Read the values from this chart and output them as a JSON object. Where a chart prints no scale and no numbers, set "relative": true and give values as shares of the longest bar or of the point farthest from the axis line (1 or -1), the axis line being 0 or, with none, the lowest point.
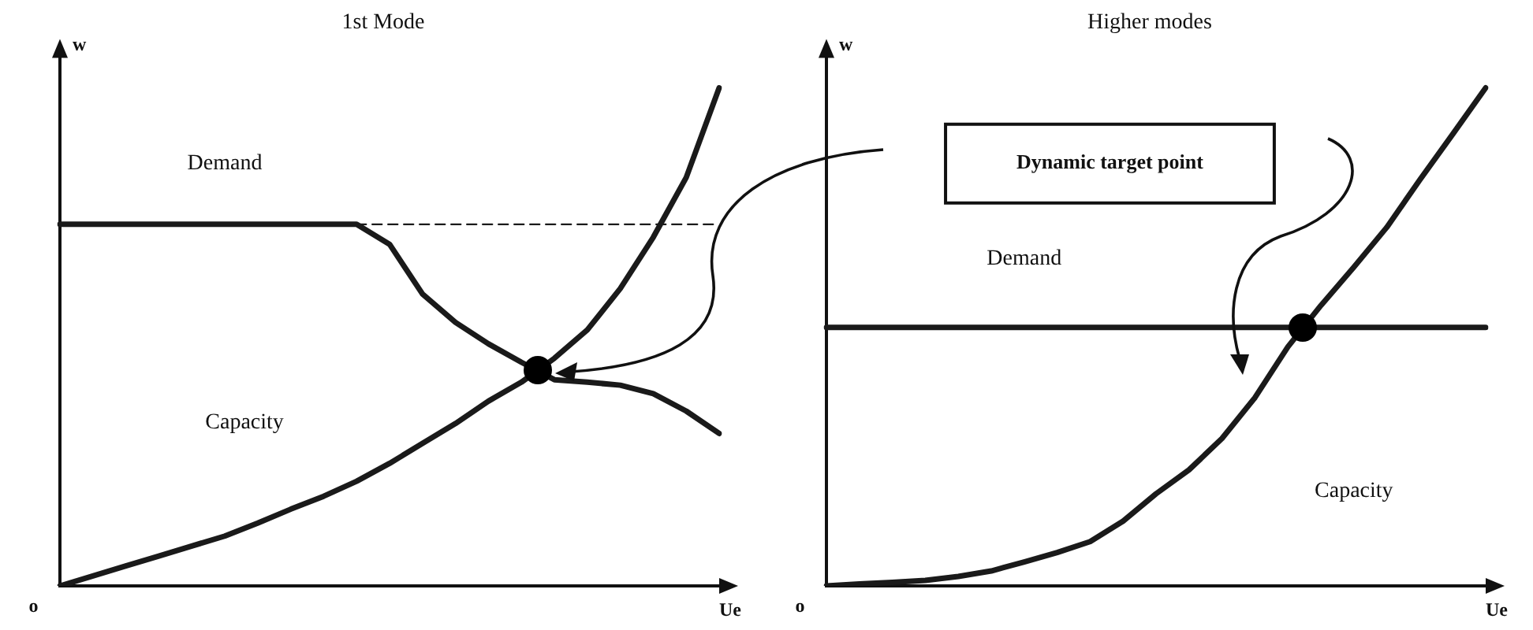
{
  "chart_data": [
    {
      "type": "line",
      "title": "1st Mode",
      "xlabel": "Ue",
      "ylabel": "w",
      "relative": true,
      "marker": "none",
      "annotations": [
        "Demand",
        "Capacity",
        "o"
      ],
      "categories": [
        null,
        null,
        null,
        null,
        null,
        null,
        null,
        null,
        null,
        null,
        null,
        null,
        null,
        null,
        null,
        null,
        null,
        null,
        null,
        null,
        null
      ],
      "series": [
        {
          "color": "#1a1a1a",
          "values": [
            0,
            0.02,
            0.04,
            0.06,
            0.08,
            0.1,
            0.126,
            0.154,
            0.18,
            0.21,
            0.246,
            0.286,
            0.326,
            0.371,
            0.409,
            0.457,
            0.514,
            0.597,
            0.7,
            0.82,
            1.0
          ]
        },
        {
          "color": "#1a1a1a",
          "values": [
            0.726,
            0.726,
            0.726,
            0.726,
            0.726,
            0.726,
            0.726,
            0.726,
            0.726,
            0.726,
            0.686,
            0.586,
            0.529,
            0.486,
            0.449,
            0.414,
            0.409,
            0.403,
            0.386,
            0.351,
            0.306
          ]
        },
        {
          "color": "#1a1a1a",
          "line_style": "dashed",
          "values": [
            null,
            null,
            null,
            null,
            null,
            null,
            null,
            null,
            null,
            0.726,
            0.726,
            0.726,
            0.726,
            0.726,
            0.726,
            0.726,
            0.726,
            0.726,
            0.726,
            0.726,
            0.726
          ]
        }
      ]
    },
    {
      "type": "line",
      "title": "Higher modes",
      "xlabel": "Ue",
      "ylabel": "w",
      "relative": true,
      "marker": "none",
      "annotations": [
        "Demand",
        "Capacity",
        "o",
        "Dynamic target point"
      ],
      "categories": [
        null,
        null,
        null,
        null,
        null,
        null,
        null,
        null,
        null,
        null,
        null,
        null,
        null,
        null,
        null,
        null,
        null,
        null,
        null,
        null,
        null
      ],
      "series": [
        {
          "color": "#1a1a1a",
          "values": [
            0,
            0.004,
            0.007,
            0.011,
            0.019,
            0.03,
            0.048,
            0.067,
            0.089,
            0.13,
            0.185,
            0.233,
            0.296,
            0.378,
            0.48,
            0.563,
            0.64,
            0.72,
            0.815,
            0.907,
            1.0
          ]
        },
        {
          "color": "#1a1a1a",
          "values": [
            0.519,
            0.519,
            0.519,
            0.519,
            0.519,
            0.519,
            0.519,
            0.519,
            0.519,
            0.519,
            0.519,
            0.519,
            0.519,
            0.519,
            0.519,
            0.519,
            0.519,
            0.519,
            0.519,
            0.519,
            0.519
          ]
        }
      ]
    }
  ]
}
